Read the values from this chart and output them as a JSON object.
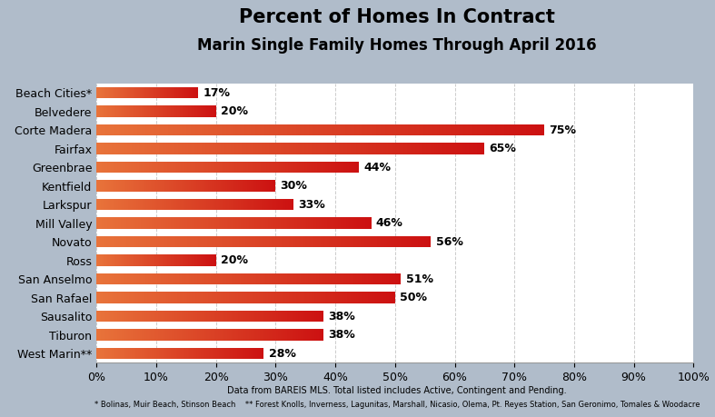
{
  "title": "Percent of Homes In Contract",
  "subtitle": "Marin Single Family Homes Through April 2016",
  "categories": [
    "Beach Cities*",
    "Belvedere",
    "Corte Madera",
    "Fairfax",
    "Greenbrae",
    "Kentfield",
    "Larkspur",
    "Mill Valley",
    "Novato",
    "Ross",
    "San Anselmo",
    "San Rafael",
    "Sausalito",
    "Tiburon",
    "West Marin**"
  ],
  "values": [
    17,
    20,
    75,
    65,
    44,
    30,
    33,
    46,
    56,
    20,
    51,
    50,
    38,
    38,
    28
  ],
  "xlim": [
    0,
    100
  ],
  "xtick_labels": [
    "0%",
    "10%",
    "20%",
    "30%",
    "40%",
    "50%",
    "60%",
    "70%",
    "80%",
    "90%",
    "100%"
  ],
  "xtick_values": [
    0,
    10,
    20,
    30,
    40,
    50,
    60,
    70,
    80,
    90,
    100
  ],
  "bar_color_left": "#E8733A",
  "bar_color_right": "#CC1111",
  "background_color": "#B0BCCA",
  "plot_bg_color": "#FFFFFF",
  "title_fontsize": 15,
  "subtitle_fontsize": 12,
  "label_fontsize": 9,
  "value_fontsize": 9,
  "footnote1": "Data from BAREIS MLS. Total listed includes Active, Contingent and Pending.",
  "footnote2": "* Bolinas, Muir Beach, Stinson Beach    ** Forest Knolls, Inverness, Lagunitas, Marshall, Nicasio, Olema, Pt. Reyes Station, San Geronimo, Tomales & Woodacre"
}
